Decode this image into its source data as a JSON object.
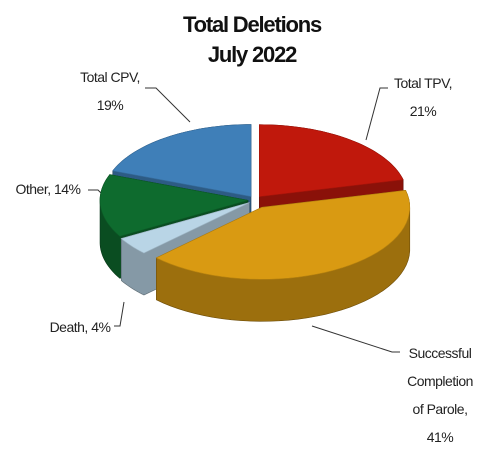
{
  "chart_data": {
    "type": "pie3d",
    "title": "Total Deletions",
    "subtitle": "July 2022",
    "labels": [
      "Total TPV, 21%",
      "Successful Completion of Parole, 41%",
      "Death, 4%",
      "Other, 14%",
      "Total CPV, 19%"
    ],
    "values": [
      21,
      41,
      4,
      14,
      19
    ],
    "colors": [
      "#c0180c",
      "#d99a12",
      "#b9d5e6",
      "#0e6b2e",
      "#3f7fb8"
    ]
  }
}
